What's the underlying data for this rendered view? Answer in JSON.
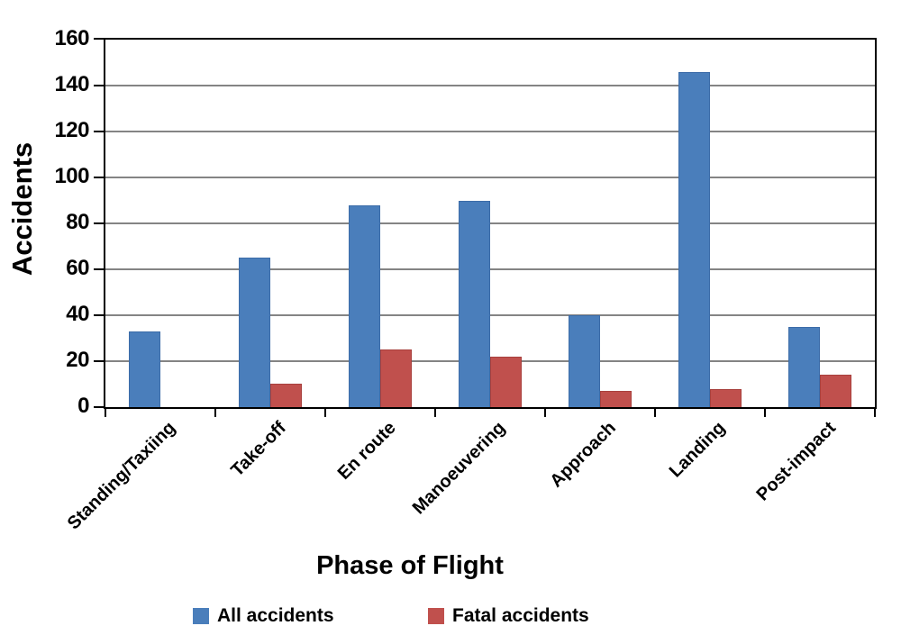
{
  "chart_data": {
    "type": "bar",
    "title": "",
    "xlabel": "Phase of Flight",
    "ylabel": "Accidents",
    "categories": [
      "Standing/Taxiing",
      "Take-off",
      "En route",
      "Manoeuvering",
      "Approach",
      "Landing",
      "Post-impact"
    ],
    "series": [
      {
        "name": "All accidents",
        "color": "#4a7ebb",
        "values": [
          33,
          65,
          88,
          90,
          40,
          146,
          35
        ]
      },
      {
        "name": "Fatal accidents",
        "color": "#c0504d",
        "values": [
          0,
          10,
          25,
          22,
          7,
          8,
          14
        ]
      }
    ],
    "ylim": [
      0,
      160
    ],
    "ytick_step": 20,
    "ytick_labels": [
      "0",
      "20",
      "40",
      "60",
      "80",
      "100",
      "120",
      "140",
      "160"
    ],
    "grid": true,
    "legend_position": "bottom",
    "colors": {
      "gridline": "#848484",
      "axis": "#000000",
      "background": "#ffffff"
    }
  }
}
